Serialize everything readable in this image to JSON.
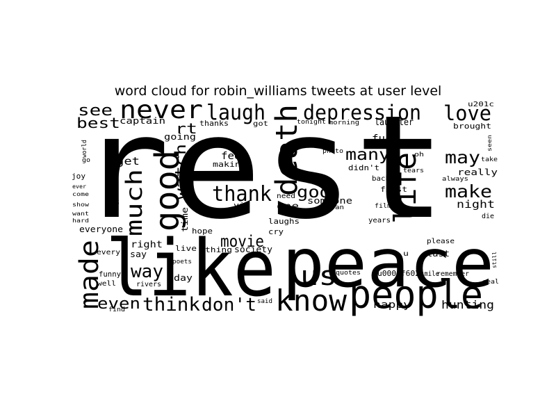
{
  "title": "word cloud for robin_williams tweets at user level",
  "colors": {
    "background": "#ffffff",
    "text": "#000000"
  },
  "words": [
    {
      "text": "rest"
    },
    {
      "text": "peace"
    },
    {
      "text": "like"
    },
    {
      "text": "people"
    },
    {
      "text": "know"
    },
    {
      "text": "us"
    },
    {
      "text": "death"
    },
    {
      "text": "good"
    },
    {
      "text": "life"
    },
    {
      "text": "much"
    },
    {
      "text": "made"
    },
    {
      "text": "never"
    },
    {
      "text": "depression"
    },
    {
      "text": "laugh"
    },
    {
      "text": "love"
    },
    {
      "text": "thank"
    },
    {
      "text": "think"
    },
    {
      "text": "don't"
    },
    {
      "text": "way"
    },
    {
      "text": "even"
    },
    {
      "text": "movie"
    },
    {
      "text": "watch"
    },
    {
      "text": "make"
    },
    {
      "text": "may"
    },
    {
      "text": "many"
    },
    {
      "text": "god"
    },
    {
      "text": "see"
    },
    {
      "text": "best"
    },
    {
      "text": "rt"
    },
    {
      "text": "hunting"
    },
    {
      "text": "happy"
    },
    {
      "text": "night"
    },
    {
      "text": "laughter"
    },
    {
      "text": "fuck"
    },
    {
      "text": "feel"
    },
    {
      "text": "get"
    },
    {
      "text": "time"
    },
    {
      "text": "right"
    },
    {
      "text": "one"
    },
    {
      "text": "going"
    },
    {
      "text": "captain"
    },
    {
      "text": "thanks"
    },
    {
      "text": "u201c"
    },
    {
      "text": "brought"
    },
    {
      "text": "really"
    },
    {
      "text": "first"
    },
    {
      "text": "someone"
    },
    {
      "text": "making"
    },
    {
      "text": "via"
    },
    {
      "text": "joan"
    },
    {
      "text": "film"
    },
    {
      "text": "years"
    },
    {
      "text": "please"
    },
    {
      "text": "last"
    },
    {
      "text": "remember"
    },
    {
      "text": "u0001f602"
    },
    {
      "text": "smile"
    },
    {
      "text": "quotes"
    },
    {
      "text": "society"
    },
    {
      "text": "thing"
    },
    {
      "text": "live"
    },
    {
      "text": "say"
    },
    {
      "text": "every"
    },
    {
      "text": "poets"
    },
    {
      "text": "day"
    },
    {
      "text": "funny"
    },
    {
      "text": "well"
    },
    {
      "text": "rivers"
    },
    {
      "text": "find"
    },
    {
      "text": "said"
    },
    {
      "text": "cry"
    },
    {
      "text": "need"
    },
    {
      "text": "laughs"
    },
    {
      "text": "hope"
    },
    {
      "text": "everyone"
    },
    {
      "text": "3"
    },
    {
      "text": "joy"
    },
    {
      "text": "ever"
    },
    {
      "text": "come"
    },
    {
      "text": "show"
    },
    {
      "text": "want"
    },
    {
      "text": "hard"
    },
    {
      "text": "world"
    },
    {
      "text": "go"
    },
    {
      "text": "got"
    },
    {
      "text": "tonight"
    },
    {
      "text": "morning"
    },
    {
      "text": "killed"
    },
    {
      "text": "photo"
    },
    {
      "text": "didn't"
    },
    {
      "text": "back"
    },
    {
      "text": "oh"
    },
    {
      "text": "tears"
    },
    {
      "text": "always"
    },
    {
      "text": "take"
    },
    {
      "text": "seen"
    },
    {
      "text": "die"
    },
    {
      "text": "u"
    },
    {
      "text": "still"
    },
    {
      "text": "real"
    }
  ]
}
